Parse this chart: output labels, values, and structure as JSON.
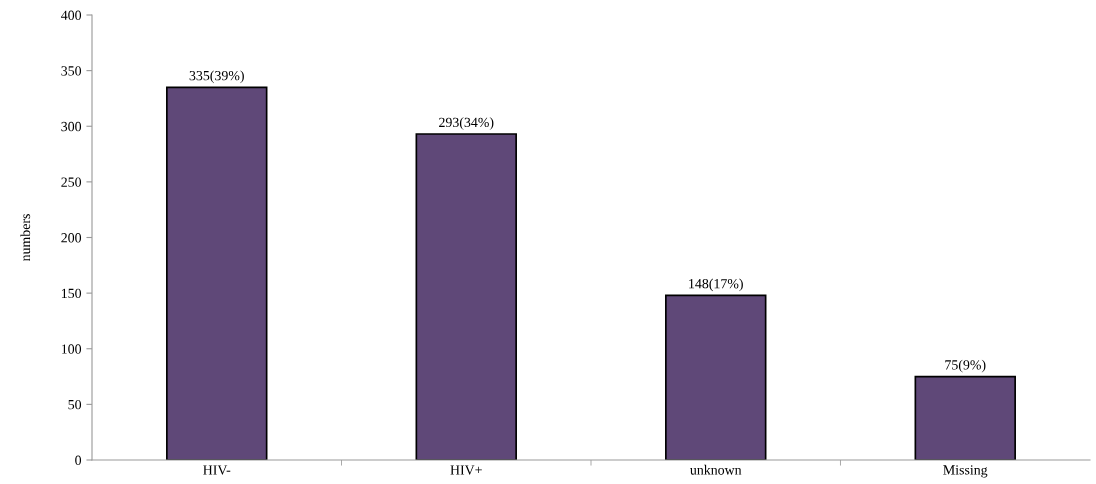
{
  "chart_data": {
    "type": "bar",
    "ylabel": "numbers",
    "categories": [
      "HIV-",
      "HIV+",
      "unknown",
      "Missing"
    ],
    "values": [
      335,
      293,
      148,
      75
    ],
    "value_labels": [
      "335(39%)",
      "293(34%)",
      "148(17%)",
      "75(9%)"
    ],
    "color": "#5f4878",
    "ylim": [
      0,
      400
    ],
    "yticks": [
      0,
      50,
      100,
      150,
      200,
      250,
      300,
      350,
      400
    ],
    "grid": false,
    "legend": false
  }
}
